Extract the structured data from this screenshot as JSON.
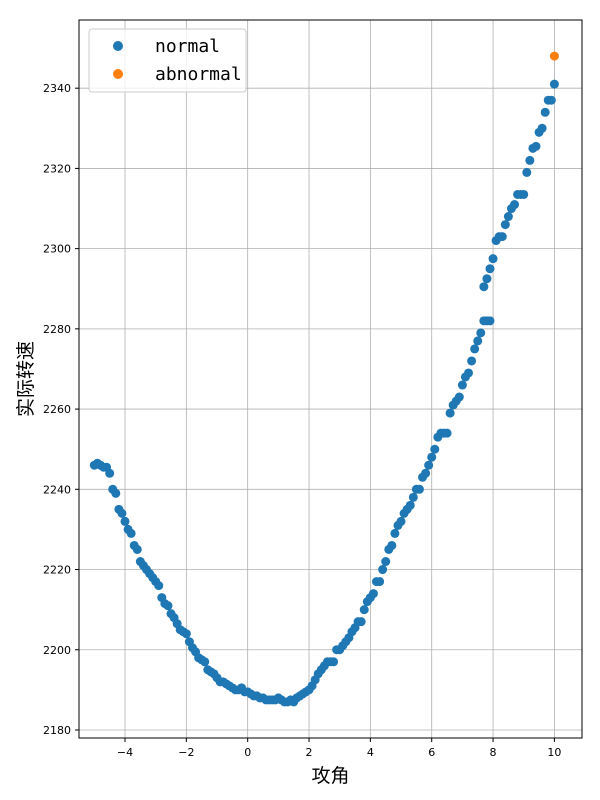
{
  "chart_data": {
    "type": "scatter",
    "xlabel": "攻角",
    "ylabel": "实际转速",
    "xlim": [
      -5.5,
      10.9
    ],
    "ylim": [
      2178,
      2357
    ],
    "xticks": [
      -4,
      -2,
      0,
      2,
      4,
      6,
      8,
      10
    ],
    "yticks": [
      2180,
      2200,
      2220,
      2240,
      2260,
      2280,
      2300,
      2320,
      2340
    ],
    "grid": true,
    "legend_position": "top-left",
    "series": [
      {
        "name": "normal",
        "color": "#1f77b4",
        "points": [
          [
            -5.0,
            2246
          ],
          [
            -4.9,
            2246.5
          ],
          [
            -4.8,
            2246
          ],
          [
            -4.7,
            2245.5
          ],
          [
            -4.6,
            2245.5
          ],
          [
            -4.5,
            2244
          ],
          [
            -4.4,
            2240
          ],
          [
            -4.3,
            2239
          ],
          [
            -4.2,
            2235
          ],
          [
            -4.1,
            2234
          ],
          [
            -4.0,
            2232
          ],
          [
            -3.9,
            2230
          ],
          [
            -3.8,
            2229
          ],
          [
            -3.7,
            2226
          ],
          [
            -3.6,
            2225
          ],
          [
            -3.5,
            2222
          ],
          [
            -3.4,
            2221
          ],
          [
            -3.3,
            2220
          ],
          [
            -3.2,
            2219
          ],
          [
            -3.1,
            2218
          ],
          [
            -3.0,
            2217
          ],
          [
            -2.9,
            2216
          ],
          [
            -2.8,
            2213
          ],
          [
            -2.7,
            2211.5
          ],
          [
            -2.6,
            2211
          ],
          [
            -2.5,
            2209
          ],
          [
            -2.4,
            2208
          ],
          [
            -2.3,
            2206.5
          ],
          [
            -2.2,
            2205
          ],
          [
            -2.1,
            2204.5
          ],
          [
            -2.0,
            2204
          ],
          [
            -1.9,
            2202
          ],
          [
            -1.8,
            2200.5
          ],
          [
            -1.7,
            2199.5
          ],
          [
            -1.6,
            2198
          ],
          [
            -1.5,
            2197.5
          ],
          [
            -1.4,
            2197
          ],
          [
            -1.3,
            2195
          ],
          [
            -1.2,
            2194.5
          ],
          [
            -1.1,
            2194
          ],
          [
            -1.0,
            2193
          ],
          [
            -0.9,
            2192
          ],
          [
            -0.8,
            2192
          ],
          [
            -0.7,
            2191.5
          ],
          [
            -0.6,
            2191
          ],
          [
            -0.5,
            2190.5
          ],
          [
            -0.4,
            2190
          ],
          [
            -0.3,
            2190
          ],
          [
            -0.2,
            2190.5
          ],
          [
            -0.1,
            2189.5
          ],
          [
            0.0,
            2189.5
          ],
          [
            0.1,
            2189
          ],
          [
            0.2,
            2188.5
          ],
          [
            0.3,
            2188.5
          ],
          [
            0.4,
            2188
          ],
          [
            0.5,
            2188
          ],
          [
            0.6,
            2187.5
          ],
          [
            0.7,
            2187.5
          ],
          [
            0.8,
            2187.5
          ],
          [
            0.9,
            2187.5
          ],
          [
            1.0,
            2188
          ],
          [
            1.1,
            2187.5
          ],
          [
            1.2,
            2187
          ],
          [
            1.3,
            2187
          ],
          [
            1.4,
            2187.5
          ],
          [
            1.5,
            2187
          ],
          [
            1.6,
            2188
          ],
          [
            1.7,
            2188.5
          ],
          [
            1.8,
            2189
          ],
          [
            1.9,
            2189.5
          ],
          [
            2.0,
            2190
          ],
          [
            2.1,
            2191
          ],
          [
            2.2,
            2192.5
          ],
          [
            2.3,
            2194
          ],
          [
            2.4,
            2195
          ],
          [
            2.5,
            2196
          ],
          [
            2.6,
            2197
          ],
          [
            2.7,
            2197
          ],
          [
            2.8,
            2197
          ],
          [
            2.9,
            2200
          ],
          [
            3.0,
            2200
          ],
          [
            3.1,
            2201
          ],
          [
            3.2,
            2202
          ],
          [
            3.3,
            2203
          ],
          [
            3.4,
            2204.5
          ],
          [
            3.5,
            2205.5
          ],
          [
            3.6,
            2207
          ],
          [
            3.7,
            2207
          ],
          [
            3.8,
            2210
          ],
          [
            3.9,
            2212
          ],
          [
            4.0,
            2213
          ],
          [
            4.1,
            2214
          ],
          [
            4.2,
            2217
          ],
          [
            4.3,
            2217
          ],
          [
            4.4,
            2220
          ],
          [
            4.5,
            2222
          ],
          [
            4.6,
            2225
          ],
          [
            4.7,
            2226
          ],
          [
            4.8,
            2229
          ],
          [
            4.9,
            2231
          ],
          [
            5.0,
            2232
          ],
          [
            5.1,
            2234
          ],
          [
            5.2,
            2235
          ],
          [
            5.3,
            2236
          ],
          [
            5.4,
            2238
          ],
          [
            5.5,
            2240
          ],
          [
            5.6,
            2240
          ],
          [
            5.7,
            2243
          ],
          [
            5.8,
            2244
          ],
          [
            5.9,
            2246
          ],
          [
            6.0,
            2248
          ],
          [
            6.1,
            2250
          ],
          [
            6.2,
            2253
          ],
          [
            6.3,
            2254
          ],
          [
            6.4,
            2254
          ],
          [
            6.5,
            2254
          ],
          [
            6.6,
            2259
          ],
          [
            6.7,
            2261
          ],
          [
            6.8,
            2262
          ],
          [
            6.9,
            2263
          ],
          [
            7.0,
            2266
          ],
          [
            7.1,
            2268
          ],
          [
            7.2,
            2269
          ],
          [
            7.3,
            2272
          ],
          [
            7.4,
            2275
          ],
          [
            7.5,
            2277
          ],
          [
            7.6,
            2279
          ],
          [
            7.7,
            2282
          ],
          [
            7.8,
            2282
          ],
          [
            7.9,
            2282
          ],
          [
            7.7,
            2290.5
          ],
          [
            7.8,
            2292.5
          ],
          [
            7.9,
            2295
          ],
          [
            8.0,
            2297.5
          ],
          [
            8.1,
            2302
          ],
          [
            8.2,
            2303
          ],
          [
            8.3,
            2303
          ],
          [
            8.4,
            2306
          ],
          [
            8.5,
            2308
          ],
          [
            8.6,
            2310
          ],
          [
            8.7,
            2311
          ],
          [
            8.8,
            2313.5
          ],
          [
            8.9,
            2313.5
          ],
          [
            9.0,
            2313.5
          ],
          [
            9.1,
            2319
          ],
          [
            9.2,
            2322
          ],
          [
            9.3,
            2325
          ],
          [
            9.4,
            2325.5
          ],
          [
            9.5,
            2329
          ],
          [
            9.6,
            2330
          ],
          [
            9.7,
            2334
          ],
          [
            9.8,
            2337
          ],
          [
            9.9,
            2337
          ],
          [
            10.0,
            2341
          ]
        ]
      },
      {
        "name": "abnormal",
        "color": "#ff7f0e",
        "points": [
          [
            10.0,
            2348
          ]
        ]
      }
    ]
  }
}
